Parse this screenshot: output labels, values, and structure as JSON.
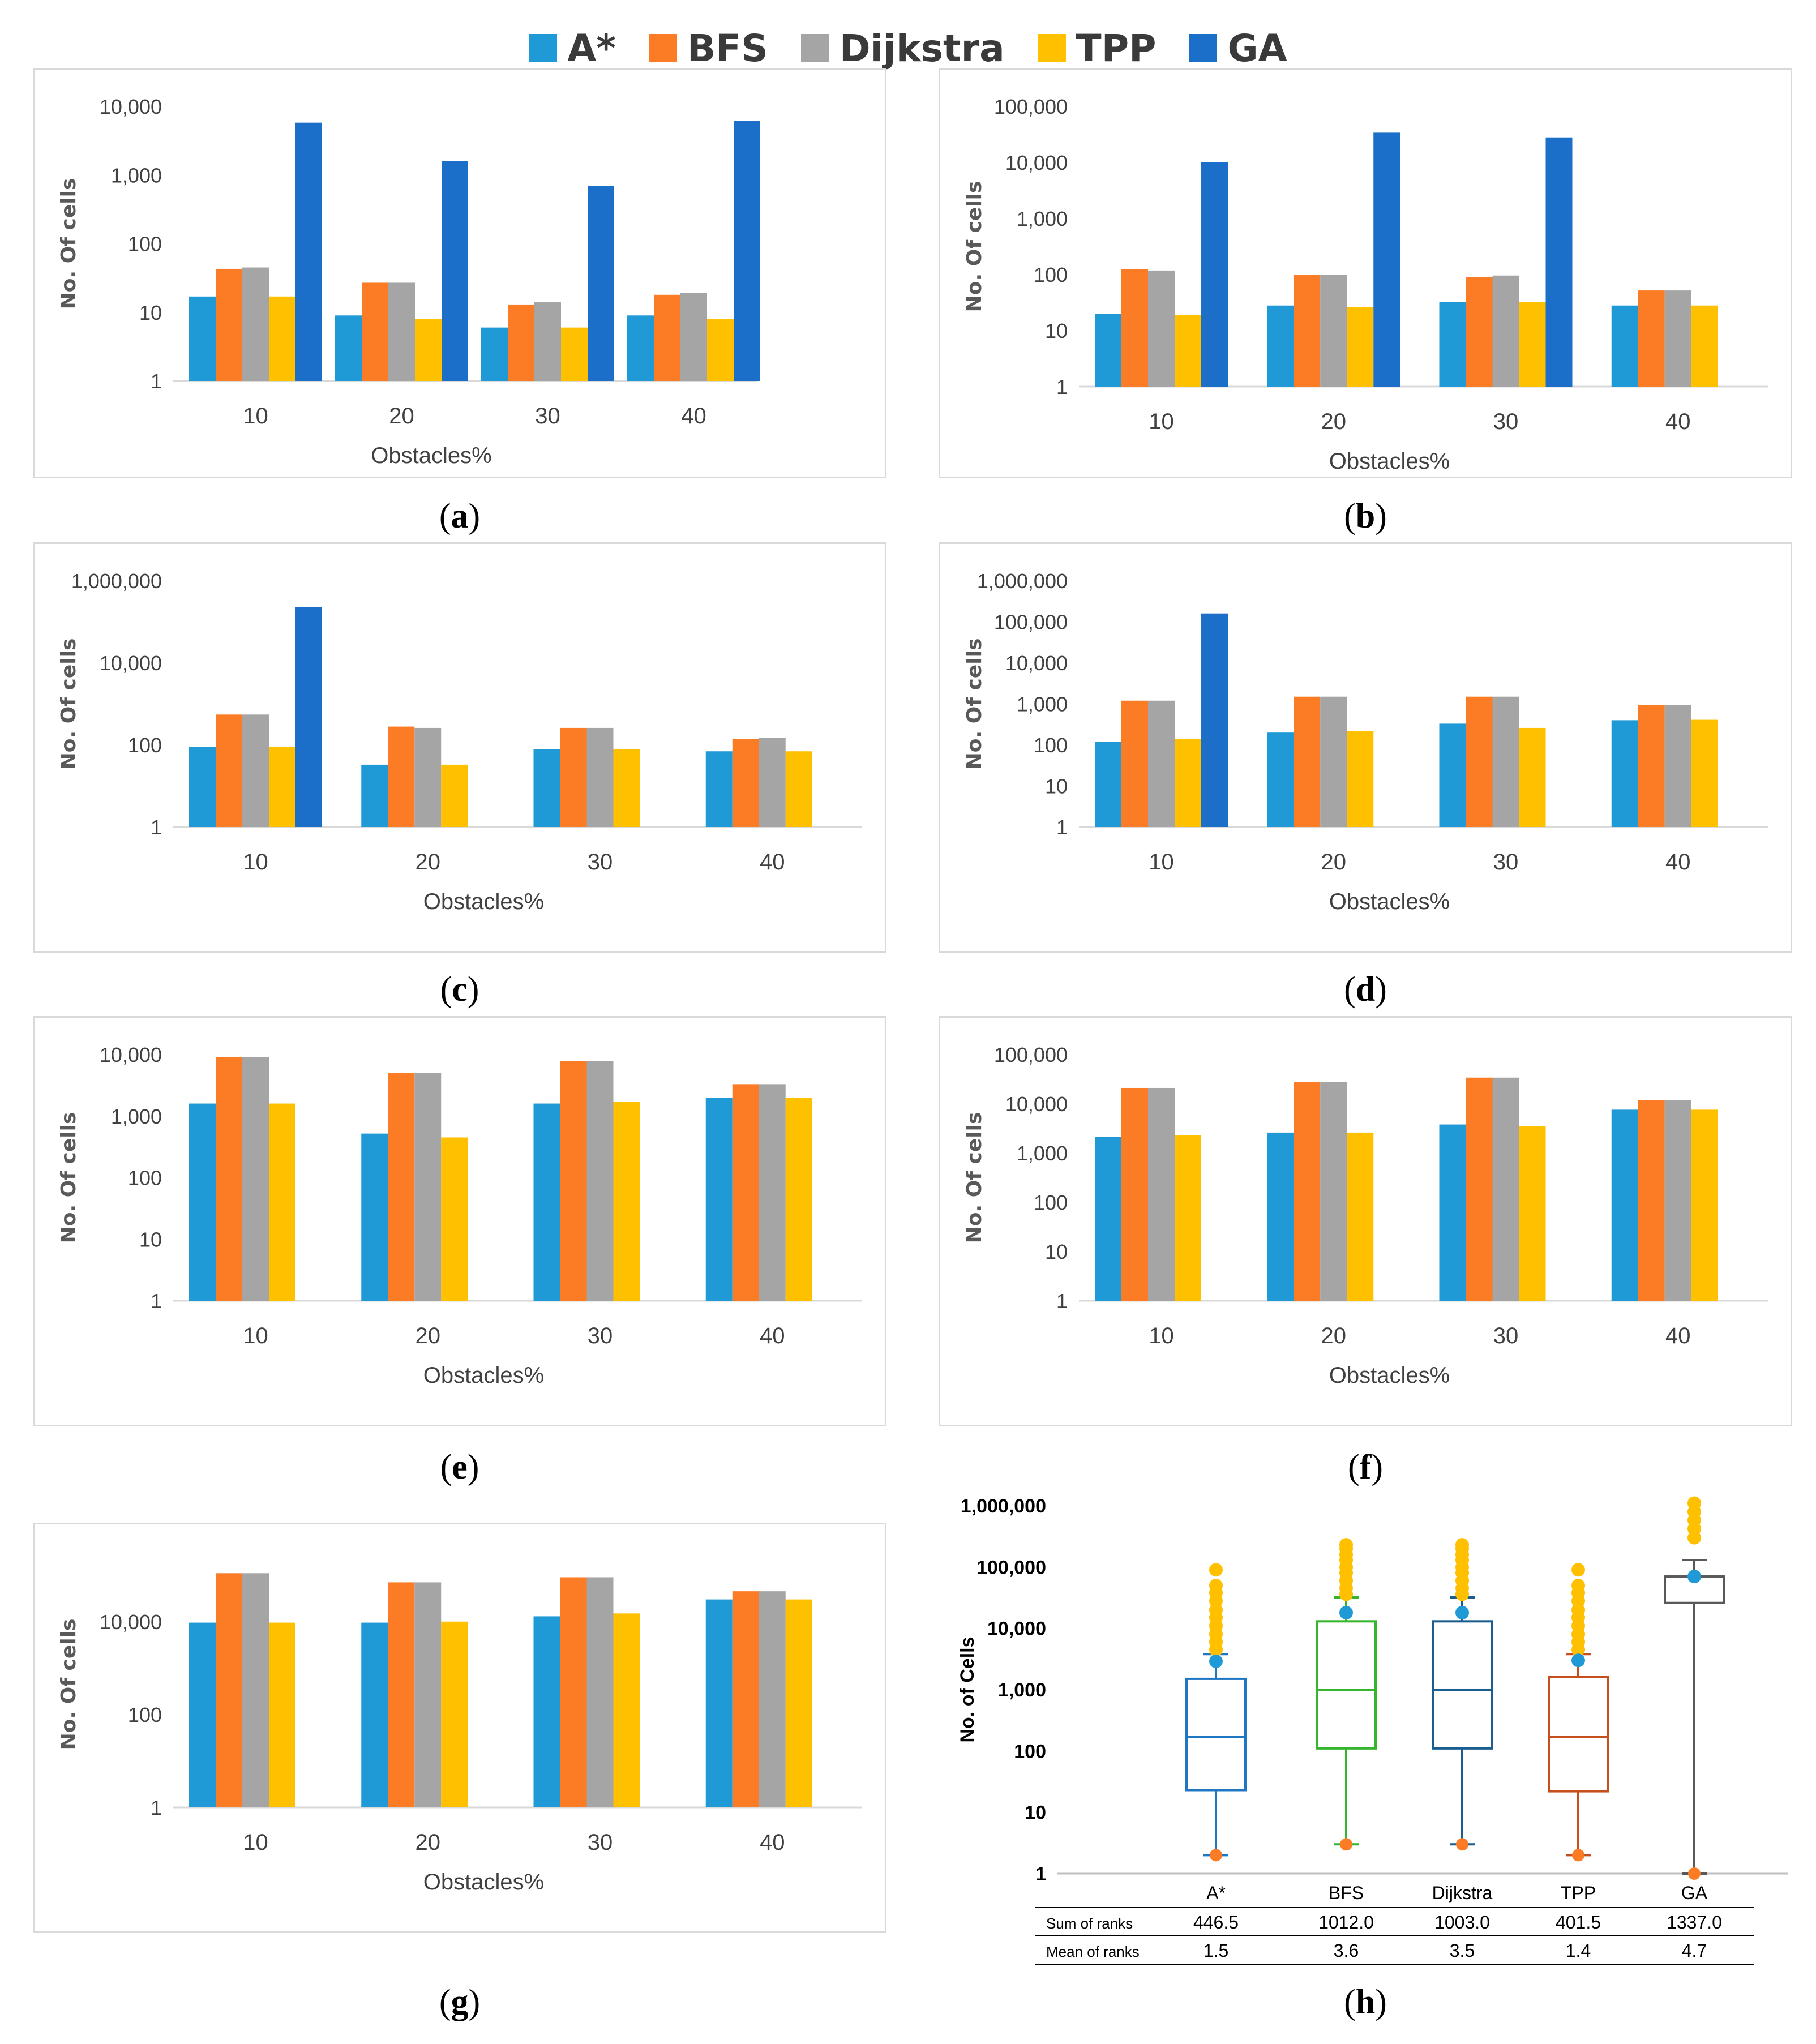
{
  "legend": [
    {
      "name": "A*",
      "color": "#1f9ad6"
    },
    {
      "name": "BFS",
      "color": "#fb7c24"
    },
    {
      "name": "Dijkstra",
      "color": "#a5a5a5"
    },
    {
      "name": "TPP",
      "color": "#ffc000"
    },
    {
      "name": "GA",
      "color": "#1b6fc8"
    }
  ],
  "captions": {
    "a": "a",
    "b": "b",
    "c": "c",
    "d": "d",
    "e": "e",
    "f": "f",
    "g": "g",
    "h": "h"
  },
  "chart_data": [
    {
      "id": "a",
      "type": "bar",
      "scale": "log",
      "ylabel": "No. Of cells",
      "xlabel": "Obstacles%",
      "categories": [
        "10",
        "20",
        "30",
        "40"
      ],
      "ticks": [
        {
          "v": 1,
          "label": "1"
        },
        {
          "v": 10,
          "label": "10"
        },
        {
          "v": 100,
          "label": "100"
        },
        {
          "v": 1000,
          "label": "1,000"
        },
        {
          "v": 10000,
          "label": "10,000"
        }
      ],
      "ylim": [
        1,
        10000
      ],
      "series": [
        {
          "name": "A*",
          "values": [
            17,
            9,
            6,
            9
          ]
        },
        {
          "name": "BFS",
          "values": [
            43,
            27,
            13,
            18
          ]
        },
        {
          "name": "Dijkstra",
          "values": [
            45,
            27,
            14,
            19
          ]
        },
        {
          "name": "TPP",
          "values": [
            17,
            8,
            6,
            8
          ]
        },
        {
          "name": "GA",
          "values": [
            5800,
            1600,
            700,
            6200
          ]
        }
      ]
    },
    {
      "id": "b",
      "type": "bar",
      "scale": "log",
      "ylabel": "No. Of cells",
      "xlabel": "Obstacles%",
      "categories": [
        "10",
        "20",
        "30",
        "40"
      ],
      "ticks": [
        {
          "v": 1,
          "label": "1"
        },
        {
          "v": 10,
          "label": "10"
        },
        {
          "v": 100,
          "label": "100"
        },
        {
          "v": 1000,
          "label": "1,000"
        },
        {
          "v": 10000,
          "label": "10,000"
        },
        {
          "v": 100000,
          "label": "100,000"
        }
      ],
      "ylim": [
        1,
        100000
      ],
      "series": [
        {
          "name": "A*",
          "values": [
            20,
            28,
            32,
            28
          ]
        },
        {
          "name": "BFS",
          "values": [
            125,
            100,
            90,
            52
          ]
        },
        {
          "name": "Dijkstra",
          "values": [
            118,
            98,
            96,
            52
          ]
        },
        {
          "name": "TPP",
          "values": [
            19,
            26,
            32,
            28
          ]
        },
        {
          "name": "GA",
          "values": [
            10000,
            34000,
            28000,
            null
          ]
        }
      ]
    },
    {
      "id": "c",
      "type": "bar",
      "scale": "log",
      "ylabel": "No. Of cells",
      "xlabel": "Obstacles%",
      "categories": [
        "10",
        "20",
        "30",
        "40"
      ],
      "ticks": [
        {
          "v": 1,
          "label": "1"
        },
        {
          "v": 100,
          "label": "100"
        },
        {
          "v": 10000,
          "label": "10,000"
        },
        {
          "v": 1000000,
          "label": "1,000,000"
        }
      ],
      "ylim": [
        1,
        1000000
      ],
      "series": [
        {
          "name": "A*",
          "values": [
            90,
            33,
            80,
            70
          ]
        },
        {
          "name": "BFS",
          "values": [
            550,
            280,
            260,
            140
          ]
        },
        {
          "name": "Dijkstra",
          "values": [
            550,
            260,
            260,
            150
          ]
        },
        {
          "name": "TPP",
          "values": [
            90,
            33,
            80,
            70
          ]
        },
        {
          "name": "GA",
          "values": [
            230000,
            null,
            null,
            null
          ]
        }
      ]
    },
    {
      "id": "d",
      "type": "bar",
      "scale": "log",
      "ylabel": "No. Of cells",
      "xlabel": "Obstacles%",
      "categories": [
        "10",
        "20",
        "30",
        "40"
      ],
      "ticks": [
        {
          "v": 1,
          "label": "1"
        },
        {
          "v": 10,
          "label": "10"
        },
        {
          "v": 100,
          "label": "100"
        },
        {
          "v": 1000,
          "label": "1,000"
        },
        {
          "v": 10000,
          "label": "10,000"
        },
        {
          "v": 100000,
          "label": "100,000"
        },
        {
          "v": 1000000,
          "label": "1,000,000"
        }
      ],
      "ylim": [
        1,
        1000000
      ],
      "series": [
        {
          "name": "A*",
          "values": [
            120,
            200,
            330,
            400
          ]
        },
        {
          "name": "BFS",
          "values": [
            1200,
            1500,
            1500,
            950
          ]
        },
        {
          "name": "Dijkstra",
          "values": [
            1200,
            1500,
            1500,
            950
          ]
        },
        {
          "name": "TPP",
          "values": [
            140,
            220,
            260,
            410
          ]
        },
        {
          "name": "GA",
          "values": [
            160000,
            null,
            null,
            null
          ]
        }
      ]
    },
    {
      "id": "e",
      "type": "bar",
      "scale": "log",
      "ylabel": "No. Of cells",
      "xlabel": "Obstacles%",
      "categories": [
        "10",
        "20",
        "30",
        "40"
      ],
      "ticks": [
        {
          "v": 1,
          "label": "1"
        },
        {
          "v": 10,
          "label": "10"
        },
        {
          "v": 100,
          "label": "100"
        },
        {
          "v": 1000,
          "label": "1,000"
        },
        {
          "v": 10000,
          "label": "10,000"
        }
      ],
      "ylim": [
        1,
        10000
      ],
      "series": [
        {
          "name": "A*",
          "values": [
            1600,
            520,
            1600,
            2000
          ]
        },
        {
          "name": "BFS",
          "values": [
            9000,
            5000,
            7800,
            3300
          ]
        },
        {
          "name": "Dijkstra",
          "values": [
            9000,
            5000,
            7800,
            3300
          ]
        },
        {
          "name": "TPP",
          "values": [
            1600,
            450,
            1700,
            2000
          ]
        },
        {
          "name": "GA",
          "values": [
            null,
            null,
            null,
            null
          ]
        }
      ]
    },
    {
      "id": "f",
      "type": "bar",
      "scale": "log",
      "ylabel": "No. Of cells",
      "xlabel": "Obstacles%",
      "categories": [
        "10",
        "20",
        "30",
        "40"
      ],
      "ticks": [
        {
          "v": 1,
          "label": "1"
        },
        {
          "v": 10,
          "label": "10"
        },
        {
          "v": 100,
          "label": "100"
        },
        {
          "v": 1000,
          "label": "1,000"
        },
        {
          "v": 10000,
          "label": "10,000"
        },
        {
          "v": 100000,
          "label": "100,000"
        }
      ],
      "ylim": [
        1,
        100000
      ],
      "series": [
        {
          "name": "A*",
          "values": [
            2100,
            2600,
            3800,
            7600
          ]
        },
        {
          "name": "BFS",
          "values": [
            21000,
            28000,
            34000,
            12000
          ]
        },
        {
          "name": "Dijkstra",
          "values": [
            21000,
            28000,
            34000,
            12000
          ]
        },
        {
          "name": "TPP",
          "values": [
            2300,
            2600,
            3500,
            7600
          ]
        },
        {
          "name": "GA",
          "values": [
            null,
            null,
            null,
            null
          ]
        }
      ]
    },
    {
      "id": "g",
      "type": "bar",
      "scale": "log",
      "ylabel": "No. Of cells",
      "xlabel": "Obstacles%",
      "categories": [
        "10",
        "20",
        "30",
        "40"
      ],
      "ticks": [
        {
          "v": 1,
          "label": "1"
        },
        {
          "v": 100,
          "label": "100"
        },
        {
          "v": 10000,
          "label": "10,000"
        }
      ],
      "ylim": [
        1,
        200000
      ],
      "series": [
        {
          "name": "A*",
          "values": [
            9500,
            9500,
            13000,
            30000
          ]
        },
        {
          "name": "BFS",
          "values": [
            110000,
            70000,
            90000,
            45000
          ]
        },
        {
          "name": "Dijkstra",
          "values": [
            110000,
            70000,
            90000,
            45000
          ]
        },
        {
          "name": "TPP",
          "values": [
            9500,
            10000,
            15000,
            30000
          ]
        },
        {
          "name": "GA",
          "values": [
            null,
            null,
            null,
            null
          ]
        }
      ]
    },
    {
      "id": "h",
      "type": "boxplot",
      "scale": "log",
      "ylabel": "No. of Cells",
      "ticks": [
        {
          "v": 1,
          "label": "1"
        },
        {
          "v": 10,
          "label": "10"
        },
        {
          "v": 100,
          "label": "100"
        },
        {
          "v": 1000,
          "label": "1,000"
        },
        {
          "v": 10000,
          "label": "10,000"
        },
        {
          "v": 100000,
          "label": "100,000"
        },
        {
          "v": 1000000,
          "label": "1,000,000"
        }
      ],
      "ylim": [
        1,
        1000000
      ],
      "categories": [
        "A*",
        "BFS",
        "Dijkstra",
        "TPP",
        "GA"
      ],
      "boxes": [
        {
          "name": "A*",
          "color": "#1f77c4",
          "min": 2,
          "q1": 23,
          "median": 170,
          "q3": 1500,
          "max": 3800,
          "mean": 2900,
          "outliers": [
            4500,
            6000,
            8000,
            11000,
            15000,
            20000,
            28000,
            38000,
            50000,
            90000
          ]
        },
        {
          "name": "BFS",
          "color": "#35b52d",
          "min": 3,
          "q1": 110,
          "median": 1000,
          "q3": 13000,
          "max": 32000,
          "mean": 18000,
          "outliers": [
            36000,
            45000,
            60000,
            80000,
            100000,
            130000,
            160000,
            200000,
            230000
          ]
        },
        {
          "name": "Dijkstra",
          "color": "#1a5e8f",
          "min": 3,
          "q1": 110,
          "median": 1000,
          "q3": 13000,
          "max": 32000,
          "mean": 18000,
          "outliers": [
            36000,
            45000,
            60000,
            80000,
            100000,
            130000,
            160000,
            200000,
            230000
          ]
        },
        {
          "name": "TPP",
          "color": "#c5501b",
          "min": 2,
          "q1": 22,
          "median": 170,
          "q3": 1600,
          "max": 3800,
          "mean": 3000,
          "outliers": [
            4500,
            6000,
            8000,
            11000,
            15000,
            20000,
            28000,
            38000,
            50000,
            90000
          ]
        },
        {
          "name": "GA",
          "color": "#595959",
          "min": 1,
          "q1": 26000,
          "median": 70000,
          "q3": 70000,
          "max": 130000,
          "mean": 70000,
          "outliers": [
            300000,
            420000,
            580000,
            800000,
            1100000
          ]
        }
      ],
      "table": {
        "headers": [
          "Sum of ranks",
          "Mean of ranks"
        ],
        "rows": [
          [
            "446.5",
            "1012.0",
            "1003.0",
            "401.5",
            "1337.0"
          ],
          [
            "1.5",
            "3.6",
            "3.5",
            "1.4",
            "4.7"
          ]
        ]
      }
    }
  ]
}
